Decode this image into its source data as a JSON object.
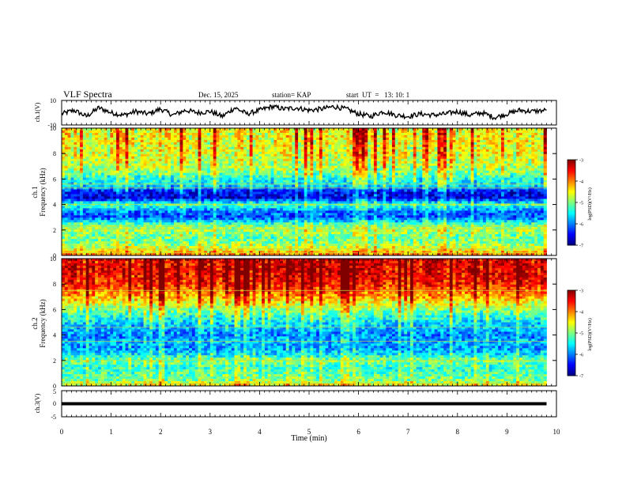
{
  "header": {
    "title": "VLF Spectra",
    "date": "Dec. 15, 2025",
    "station": "station= KAP",
    "start_ut": "start  UT  =   13: 10: 1"
  },
  "chart_data": [
    {
      "type": "line",
      "name": "ch1-waveform",
      "ylabel": "ch.1(V)",
      "ylim": [
        -10,
        10
      ],
      "yticks": [
        "10",
        "-10"
      ],
      "xlim": [
        0,
        10
      ],
      "description_of_trend": "noisy waveform around 0 V with slow oscillation, amplitude roughly ±5 V",
      "x": [
        0,
        0.25,
        0.5,
        0.75,
        1,
        1.25,
        1.5,
        1.75,
        2,
        2.25,
        2.5,
        2.75,
        3,
        3.25,
        3.5,
        3.75,
        4,
        4.25,
        4.5,
        4.75,
        5,
        5.25,
        5.5,
        5.75,
        6,
        6.25,
        6.5,
        6.75,
        7,
        7.25,
        7.5,
        7.75,
        8,
        8.25,
        8.5,
        8.75,
        9,
        9.25,
        9.5,
        9.8
      ],
      "y": [
        -1,
        2,
        -3,
        4,
        0,
        -2,
        1,
        -1,
        3,
        -2,
        2,
        0,
        1,
        -3,
        4,
        -1,
        2,
        5,
        3,
        4,
        2,
        3,
        5,
        3,
        -1,
        -3,
        1,
        -2,
        -3,
        -1,
        -2,
        -1,
        1,
        -2,
        0,
        -4,
        -1,
        2,
        1,
        2
      ]
    },
    {
      "type": "heatmap",
      "name": "ch1-spectrogram",
      "ylabel": "Frequency (kHz)",
      "channel_label": "ch.1",
      "xlabel": "Time (min)",
      "xlim": [
        0,
        10
      ],
      "ylim": [
        0,
        10
      ],
      "yticks": [
        "0",
        "2",
        "4",
        "6",
        "8",
        "10"
      ],
      "data_end_min": 9.8,
      "freq_kHz": [
        0,
        0.5,
        1,
        1.5,
        2,
        2.5,
        3,
        3.5,
        4,
        4.5,
        5,
        5.5,
        6,
        6.5,
        7,
        7.5,
        8,
        8.5,
        9,
        9.5,
        10
      ],
      "mean_log_psd": [
        -4.0,
        -4.6,
        -5.0,
        -5.1,
        -4.8,
        -5.3,
        -6.2,
        -6.0,
        -5.2,
        -6.6,
        -6.5,
        -5.6,
        -5.4,
        -5.0,
        -4.8,
        -4.7,
        -4.6,
        -4.6,
        -4.5,
        -4.5,
        -4.5
      ],
      "tones_kHz": [
        0.2,
        0.5,
        2.1,
        2.3,
        4.0,
        5.3,
        5.6
      ],
      "colorbar": {
        "label": "log(PSD)(V²/Hz)",
        "range": [
          -7,
          -3
        ],
        "ticks": [
          "-3",
          "-4",
          "-5",
          "-6",
          "-7"
        ]
      }
    },
    {
      "type": "heatmap",
      "name": "ch2-spectrogram",
      "ylabel": "Frequency (kHz)",
      "channel_label": "ch.2",
      "xlabel": "Time (min)",
      "xlim": [
        0,
        10
      ],
      "ylim": [
        0,
        10
      ],
      "yticks": [
        "0",
        "2",
        "4",
        "6",
        "8",
        "10"
      ],
      "data_end_min": 9.8,
      "freq_kHz": [
        0,
        0.5,
        1,
        1.5,
        2,
        2.5,
        3,
        3.5,
        4,
        4.5,
        5,
        5.5,
        6,
        6.5,
        7,
        7.5,
        8,
        8.5,
        9,
        9.5,
        10
      ],
      "mean_log_psd": [
        -4.4,
        -5.1,
        -5.2,
        -5.3,
        -5.0,
        -5.6,
        -5.9,
        -5.8,
        -6.0,
        -5.8,
        -5.6,
        -5.3,
        -5.0,
        -4.6,
        -4.2,
        -3.9,
        -3.6,
        -3.5,
        -3.4,
        -3.4,
        -3.4
      ],
      "tones_kHz": [
        0.2,
        2.0,
        3.5,
        4.6,
        6.2,
        7.5
      ],
      "colorbar": {
        "label": "log(PSD)(V²/Hz)",
        "range": [
          -7,
          -3
        ],
        "ticks": [
          "-3",
          "-4",
          "-5",
          "-6",
          "-7"
        ]
      }
    },
    {
      "type": "line",
      "name": "ch3-waveform",
      "ylabel": "ch.3(V)",
      "ylim": [
        -5,
        5
      ],
      "yticks": [
        "5",
        "0",
        "-5"
      ],
      "xlim": [
        0,
        10
      ],
      "xlabel": "Time (min)",
      "xticks": [
        "0",
        "1",
        "2",
        "3",
        "4",
        "5",
        "6",
        "7",
        "8",
        "9",
        "10"
      ],
      "x": [
        0,
        9.8
      ],
      "y_min": -0.6,
      "y_max": 0.6
    }
  ]
}
